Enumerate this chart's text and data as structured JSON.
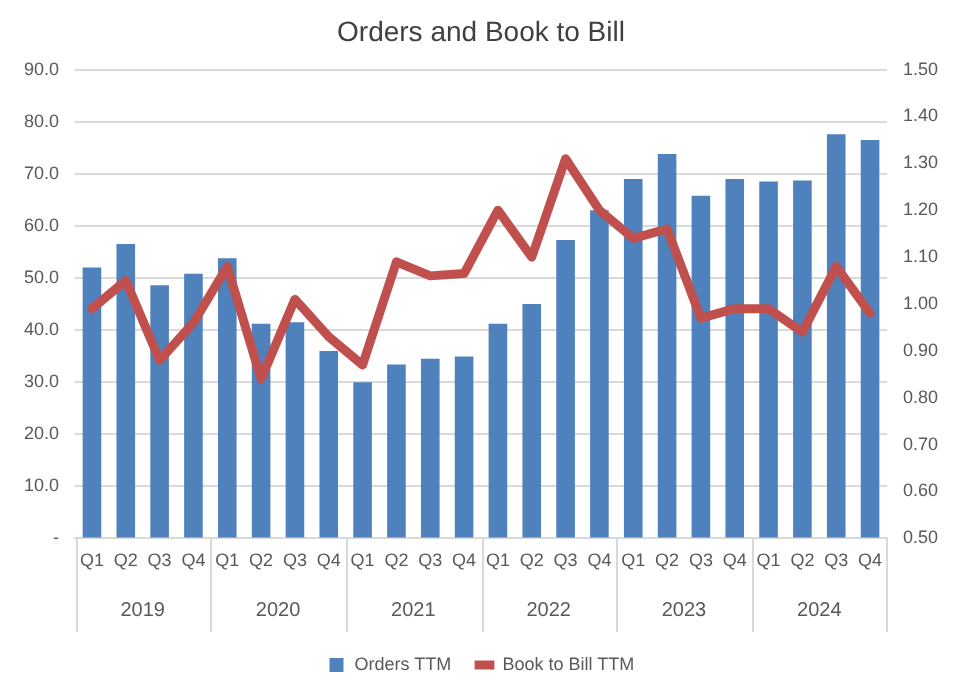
{
  "chart_data": {
    "type": "bar",
    "title": "Orders and Book to Bill",
    "categories": [
      "Q1",
      "Q2",
      "Q3",
      "Q4",
      "Q1",
      "Q2",
      "Q3",
      "Q4",
      "Q1",
      "Q2",
      "Q3",
      "Q4",
      "Q1",
      "Q2",
      "Q3",
      "Q4",
      "Q1",
      "Q2",
      "Q3",
      "Q4",
      "Q1",
      "Q2",
      "Q3",
      "Q4"
    ],
    "series": [
      {
        "name": "Orders TTM",
        "color": "#4f81bd",
        "values": [
          52.0,
          56.5,
          48.6,
          50.8,
          53.8,
          41.2,
          41.5,
          36.0,
          30.0,
          33.4,
          34.5,
          34.9,
          41.2,
          45.0,
          57.3,
          63.0,
          69.0,
          73.8,
          65.8,
          69.0,
          68.5,
          68.7,
          77.6,
          76.5
        ]
      },
      {
        "name": "Book to Bill TTM",
        "type": "line",
        "axis": "y2",
        "color": "#c0504d",
        "values": [
          0.99,
          1.05,
          0.88,
          0.96,
          1.08,
          0.84,
          1.01,
          0.93,
          0.87,
          1.09,
          1.06,
          1.065,
          1.2,
          1.1,
          1.31,
          1.2,
          1.14,
          1.16,
          0.97,
          0.99,
          0.99,
          0.94,
          1.08,
          0.98
        ]
      }
    ],
    "annotations": [
      "2019",
      "2020",
      "2021",
      "2022",
      "2023",
      "2024"
    ],
    "ylim": [
      0,
      90
    ],
    "yticks": [
      {
        "value": 0,
        "label": "-"
      },
      {
        "value": 10,
        "label": "10.0"
      },
      {
        "value": 20,
        "label": "20.0"
      },
      {
        "value": 30,
        "label": "30.0"
      },
      {
        "value": 40,
        "label": "40.0"
      },
      {
        "value": 50,
        "label": "50.0"
      },
      {
        "value": 60,
        "label": "60.0"
      },
      {
        "value": 70,
        "label": "70.0"
      },
      {
        "value": 80,
        "label": "80.0"
      },
      {
        "value": 90,
        "label": "90.0"
      }
    ],
    "y2lim": [
      0.5,
      1.5
    ],
    "y2ticks": [
      {
        "value": 0.5,
        "label": "0.50"
      },
      {
        "value": 0.6,
        "label": "0.60"
      },
      {
        "value": 0.7,
        "label": "0.70"
      },
      {
        "value": 0.8,
        "label": "0.80"
      },
      {
        "value": 0.9,
        "label": "0.90"
      },
      {
        "value": 1.0,
        "label": "1.00"
      },
      {
        "value": 1.1,
        "label": "1.10"
      },
      {
        "value": 1.2,
        "label": "1.20"
      },
      {
        "value": 1.3,
        "label": "1.30"
      },
      {
        "value": 1.4,
        "label": "1.40"
      },
      {
        "value": 1.5,
        "label": "1.50"
      }
    ],
    "grid": "y",
    "legend": "bottom",
    "marker": "none",
    "line_style": "solid"
  }
}
